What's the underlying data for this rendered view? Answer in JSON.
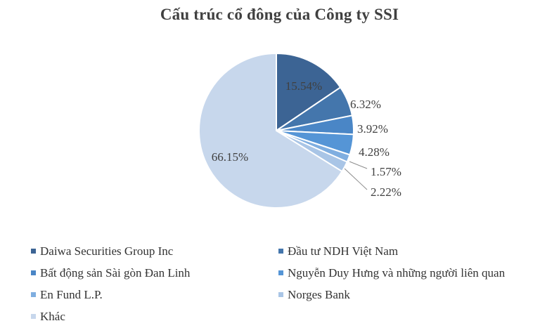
{
  "chart_data": {
    "type": "pie",
    "title": "Cấu trúc cổ đông của Công ty SSI",
    "slices": [
      {
        "name": "Daiwa Securities Group Inc",
        "value": 15.54,
        "label": "15.54%",
        "color": "#3c6494"
      },
      {
        "name": "Đầu tư NDH Việt Nam",
        "value": 6.32,
        "label": "6.32%",
        "color": "#4476ac"
      },
      {
        "name": "Bất động sản Sài gòn Đan Linh",
        "value": 3.92,
        "label": "3.92%",
        "color": "#4a86c6"
      },
      {
        "name": "Nguyễn Duy Hưng và những người liên quan",
        "value": 4.28,
        "label": "4.28%",
        "color": "#5595d6"
      },
      {
        "name": "En Fund L.P.",
        "value": 1.57,
        "label": "1.57%",
        "color": "#7faee0"
      },
      {
        "name": "Norges Bank",
        "value": 2.22,
        "label": "2.22%",
        "color": "#a9c5e6"
      },
      {
        "name": "Khác",
        "value": 66.15,
        "label": "66.15%",
        "color": "#c7d7ec"
      }
    ],
    "legend_position": "bottom"
  }
}
